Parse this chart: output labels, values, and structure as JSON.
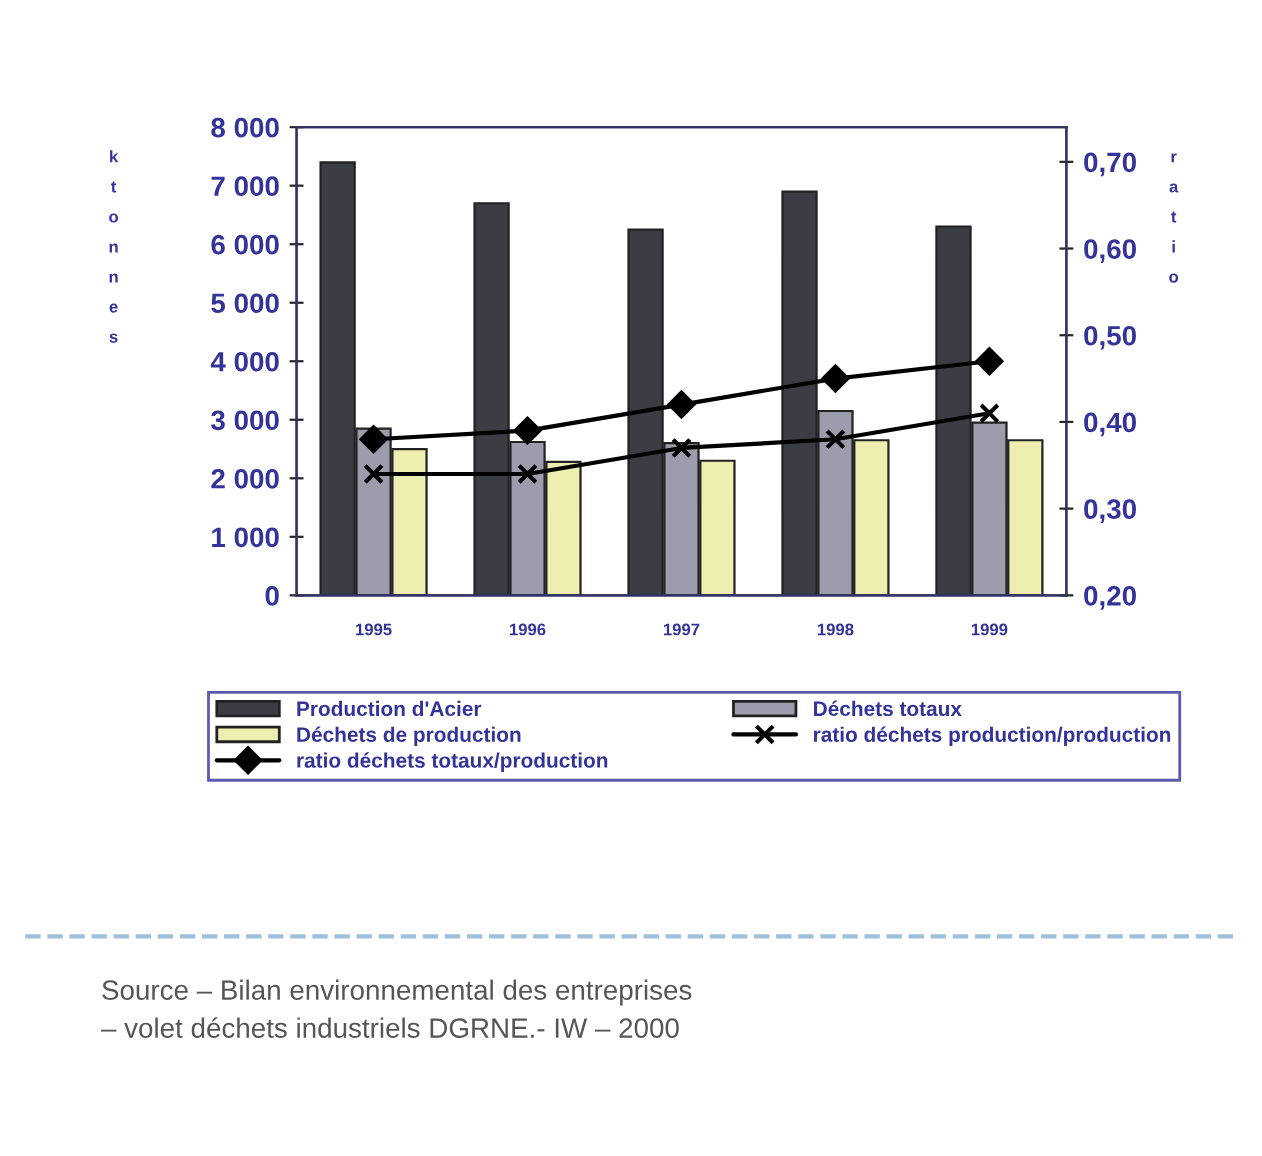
{
  "chart_data": {
    "type": "bar",
    "categories": [
      "1995",
      "1996",
      "1997",
      "1998",
      "1999"
    ],
    "series": [
      {
        "name": "Production d'Acier",
        "color": "#3c3c44",
        "values": [
          7400,
          6700,
          6250,
          6900,
          6300
        ]
      },
      {
        "name": "Déchets totaux",
        "color": "#9c9cac",
        "values": [
          2850,
          2620,
          2600,
          3150,
          2950
        ]
      },
      {
        "name": "Déchets de production",
        "color": "#eeeeb0",
        "values": [
          2500,
          2280,
          2300,
          2650,
          2650
        ]
      },
      {
        "name": "ratio déchets production/production",
        "type": "line",
        "axis": "y2",
        "marker": "cross",
        "color": "#000000",
        "values": [
          0.34,
          0.34,
          0.37,
          0.38,
          0.41
        ]
      },
      {
        "name": "ratio déchets totaux/production",
        "type": "line",
        "axis": "y2",
        "marker": "diamond",
        "color": "#000000",
        "values": [
          0.38,
          0.39,
          0.42,
          0.45,
          0.47
        ]
      }
    ],
    "ylabel": "ktonnes",
    "y2label": "ratio",
    "ylim": [
      0,
      8000
    ],
    "yticks": [
      {
        "value": 0,
        "label": "0"
      },
      {
        "value": 1000,
        "label": "1 000"
      },
      {
        "value": 2000,
        "label": "2 000"
      },
      {
        "value": 3000,
        "label": "3 000"
      },
      {
        "value": 4000,
        "label": "4 000"
      },
      {
        "value": 5000,
        "label": "5 000"
      },
      {
        "value": 6000,
        "label": "6 000"
      },
      {
        "value": 7000,
        "label": "7 000"
      },
      {
        "value": 8000,
        "label": "8 000"
      }
    ],
    "y2lim": [
      0.2,
      0.74
    ],
    "y2ticks": [
      {
        "value": 0.2,
        "label": "0,20"
      },
      {
        "value": 0.3,
        "label": "0,30"
      },
      {
        "value": 0.4,
        "label": "0,40"
      },
      {
        "value": 0.5,
        "label": "0,50"
      },
      {
        "value": 0.6,
        "label": "0,60"
      },
      {
        "value": 0.7,
        "label": "0,70"
      }
    ],
    "legend": "bottom",
    "grid": false,
    "annotations": [
      "Source – Bilan environnemental des entreprises\n– volet déchets industriels DGRNE.- IW – 2000"
    ]
  }
}
